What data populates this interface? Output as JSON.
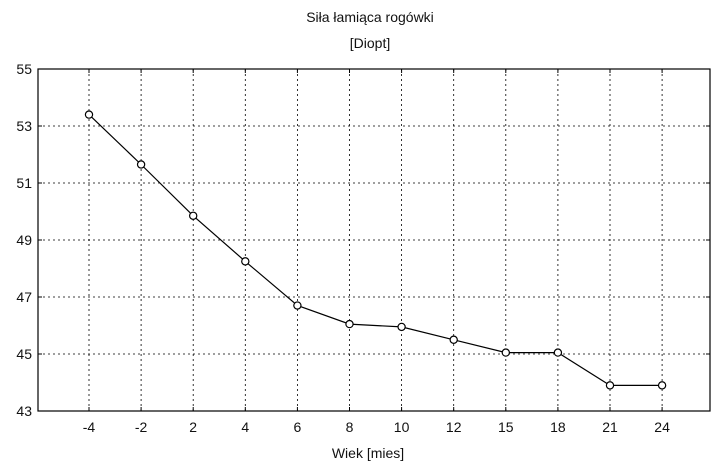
{
  "chart_data": {
    "type": "line",
    "title": "Siła łamiąca rogówki",
    "subtitle": "[Diopt]",
    "xlabel": "Wiek [mies]",
    "ylabel": "",
    "categories": [
      "-4",
      "-2",
      "2",
      "4",
      "6",
      "8",
      "10",
      "12",
      "15",
      "18",
      "21",
      "24"
    ],
    "series": [
      {
        "values": [
          53.4,
          51.65,
          49.85,
          48.25,
          46.7,
          46.05,
          45.95,
          45.5,
          45.05,
          45.05,
          43.9,
          43.9
        ]
      }
    ],
    "ylim": [
      43,
      55
    ],
    "yticks": [
      "43",
      "45",
      "47",
      "49",
      "51",
      "53",
      "55"
    ],
    "ytick_values": [
      43,
      45,
      47,
      49,
      51,
      53,
      55
    ],
    "grid": true,
    "legend": "none",
    "colors": {
      "line": "#000000",
      "marker_fill": "#ffffff",
      "text": "#111111"
    }
  }
}
